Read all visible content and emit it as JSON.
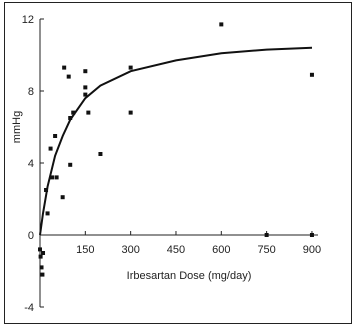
{
  "chart_data": {
    "type": "scatter",
    "title": "",
    "xlabel": "Irbesartan Dose (mg/day)",
    "ylabel": "mmHg",
    "xlim": [
      0,
      920
    ],
    "ylim": [
      -4,
      12
    ],
    "xticks": [
      150,
      300,
      450,
      600,
      750,
      900
    ],
    "yticks": [
      -4,
      0,
      4,
      8,
      12
    ],
    "grid": false,
    "legend": "none",
    "colors": {
      "points": "#111111",
      "curve": "#111111",
      "axes": "#222222"
    },
    "points": [
      {
        "x": 0,
        "y": -0.8
      },
      {
        "x": 2,
        "y": -1.2
      },
      {
        "x": 5,
        "y": -1.8
      },
      {
        "x": 8,
        "y": -2.2
      },
      {
        "x": 10,
        "y": -1.0
      },
      {
        "x": 20,
        "y": 2.5
      },
      {
        "x": 25,
        "y": 1.2
      },
      {
        "x": 35,
        "y": 4.8
      },
      {
        "x": 40,
        "y": 3.2
      },
      {
        "x": 50,
        "y": 5.5
      },
      {
        "x": 55,
        "y": 3.2
      },
      {
        "x": 75,
        "y": 2.1
      },
      {
        "x": 80,
        "y": 9.3
      },
      {
        "x": 95,
        "y": 8.8
      },
      {
        "x": 100,
        "y": 3.9
      },
      {
        "x": 100,
        "y": 6.5
      },
      {
        "x": 110,
        "y": 6.8
      },
      {
        "x": 150,
        "y": 9.1
      },
      {
        "x": 150,
        "y": 8.2
      },
      {
        "x": 150,
        "y": 7.8
      },
      {
        "x": 160,
        "y": 6.8
      },
      {
        "x": 200,
        "y": 4.5
      },
      {
        "x": 300,
        "y": 9.3
      },
      {
        "x": 300,
        "y": 6.8
      },
      {
        "x": 600,
        "y": 11.7
      },
      {
        "x": 750,
        "y": 0.0
      },
      {
        "x": 900,
        "y": 8.9
      },
      {
        "x": 900,
        "y": 0.0
      }
    ],
    "fit_curve": {
      "x": [
        0,
        10,
        25,
        50,
        75,
        100,
        150,
        200,
        300,
        450,
        600,
        750,
        900
      ],
      "y": [
        0.0,
        1.2,
        2.7,
        4.4,
        5.5,
        6.4,
        7.6,
        8.3,
        9.1,
        9.7,
        10.1,
        10.3,
        10.4
      ]
    }
  }
}
